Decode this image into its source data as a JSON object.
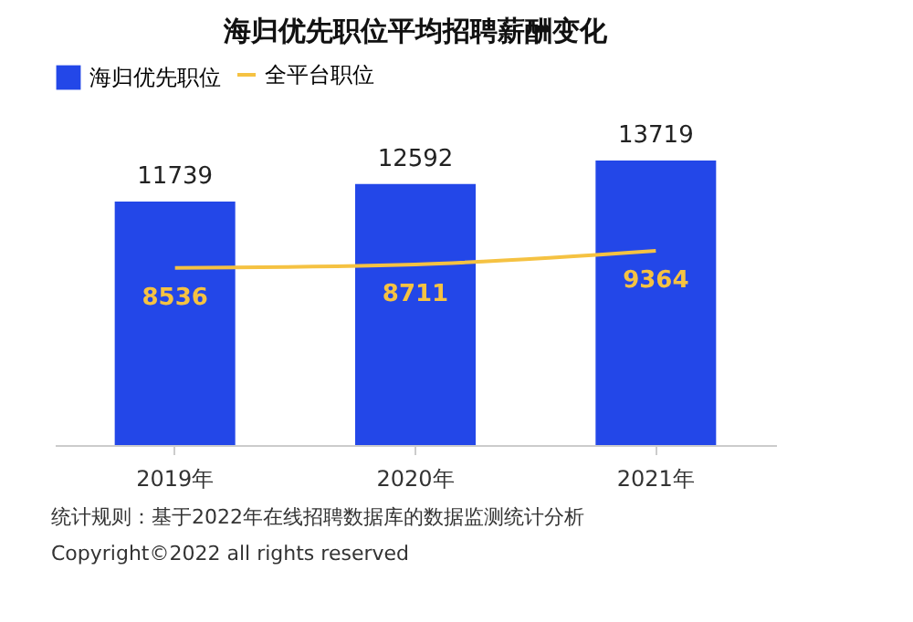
{
  "chart_data": {
    "type": "bar",
    "title": "海归优先职位平均招聘薪酬变化",
    "categories": [
      "2019年",
      "2020年",
      "2021年"
    ],
    "series": [
      {
        "name": "海归优先职位",
        "color": "#2347e8",
        "values": [
          11739,
          12592,
          13719
        ]
      },
      {
        "name": "全平台职位",
        "type": "line",
        "color": "#f5c242",
        "values": [
          8536,
          8711,
          9364
        ]
      }
    ],
    "data_labels": true,
    "legend": "top",
    "marker": "none",
    "annotations": [
      "统计规则：基于2022年在线招聘数据库的数据监测统计分析",
      "Copyright©2022 all rights reserved"
    ]
  }
}
